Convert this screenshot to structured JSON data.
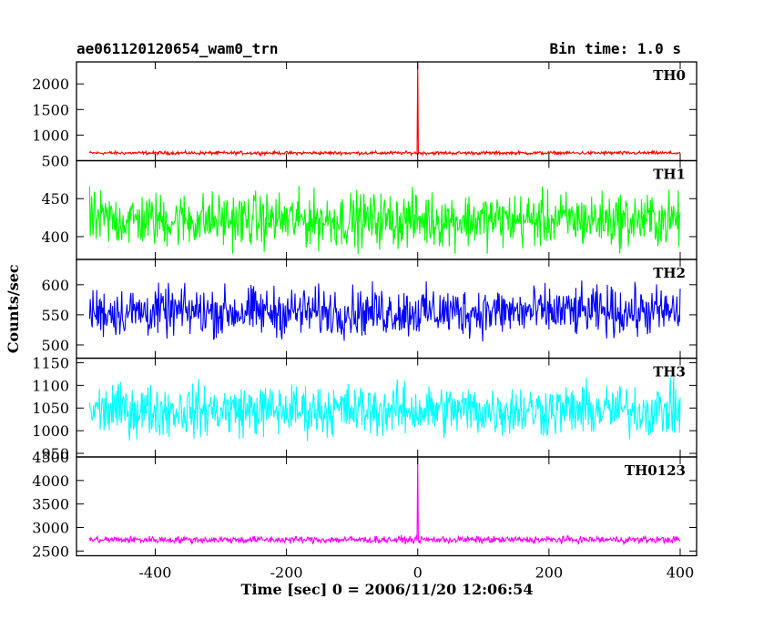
{
  "header": {
    "title": "ae061120120654_wam0_trn",
    "bin_time": "Bin time: 1.0 s"
  },
  "chart_data": {
    "type": "line",
    "title": "ae061120120654_wam0_trn",
    "subtitle": "Bin time: 1.0 s",
    "xlabel": "Time [sec] 0 = 2006/11/20 12:06:54",
    "ylabel": "Counts/sec",
    "xlim": [
      -520,
      425
    ],
    "x_ticks": [
      -400,
      -200,
      0,
      200,
      400
    ],
    "x_range_data": [
      -500,
      400
    ],
    "grid": false,
    "panels": [
      {
        "name": "TH0",
        "color": "#ff0000",
        "ylim": [
          500,
          2430
        ],
        "y_ticks": [
          1000,
          1500,
          2000
        ],
        "y_tick_labels": [
          "1000",
          "1500",
          "2000"
        ],
        "baseline": 650,
        "noise": 20,
        "peak": {
          "x": 0,
          "y": 2430
        }
      },
      {
        "name": "TH1",
        "color": "#00ff00",
        "ylim": [
          370,
          500
        ],
        "y_ticks": [
          400,
          450,
          500
        ],
        "y_tick_labels": [
          "400",
          "450",
          "500"
        ],
        "baseline": 422,
        "noise": 22
      },
      {
        "name": "TH2",
        "color": "#0000ff",
        "ylim": [
          478,
          642
        ],
        "y_ticks": [
          500,
          550,
          600
        ],
        "y_tick_labels": [
          "500",
          "550",
          "600"
        ],
        "baseline": 555,
        "noise": 25
      },
      {
        "name": "TH3",
        "color": "#00ffff",
        "ylim": [
          942,
          1160
        ],
        "y_ticks": [
          950,
          1000,
          1050,
          1100,
          1150
        ],
        "y_tick_labels": [
          "950",
          "1000",
          "1050",
          "1100",
          "1150"
        ],
        "baseline": 1045,
        "noise": 35
      },
      {
        "name": "TH0123",
        "color": "#ff00ff",
        "ylim": [
          2400,
          4500
        ],
        "y_ticks": [
          2500,
          3000,
          3500,
          4000,
          4500
        ],
        "y_tick_labels": [
          "2500",
          "3000",
          "3500",
          "4000",
          "4500"
        ],
        "baseline": 2740,
        "noise": 45,
        "peak": {
          "x": 0,
          "y": 4500
        }
      }
    ]
  }
}
